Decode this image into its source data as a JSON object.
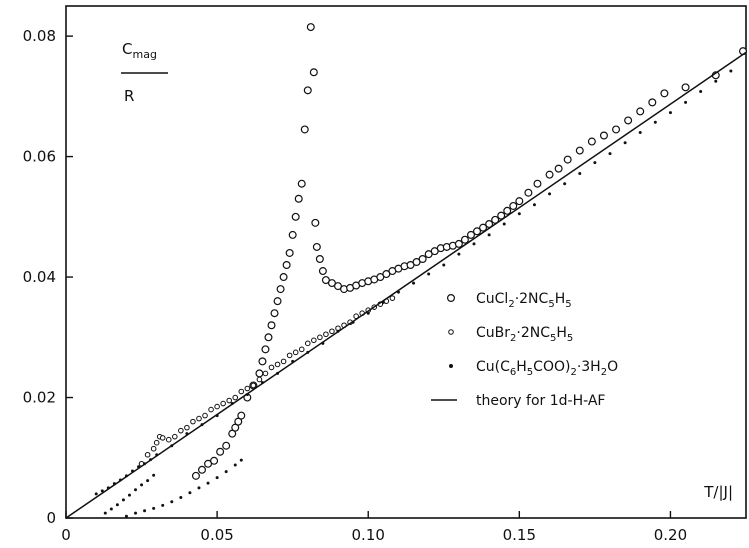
{
  "chart_data": {
    "type": "scatter",
    "title": "",
    "ylabel_top": "C",
    "ylabel_top_sub": "mag",
    "ylabel_bottom": "R",
    "xlabel": "T/|J|",
    "xlim": [
      0,
      0.225
    ],
    "ylim": [
      0,
      0.085
    ],
    "x_ticks": [
      0,
      0.05,
      0.1,
      0.15,
      0.2
    ],
    "x_tick_labels": [
      "0",
      "0.05",
      "0.10",
      "0.15",
      "0.20"
    ],
    "y_ticks": [
      0,
      0.02,
      0.04,
      0.06,
      0.08
    ],
    "y_tick_labels": [
      "0",
      "0.02",
      "0.04",
      "0.06",
      "0.08"
    ],
    "grid": false,
    "legend_position": "center-right",
    "legend": [
      {
        "key": "cucl2",
        "marker": "large-open-circle",
        "parts": [
          [
            "CuCl",
            ""
          ],
          [
            "2",
            "sub"
          ],
          [
            "·2NC",
            ""
          ],
          [
            "5",
            "sub"
          ],
          [
            "H",
            ""
          ],
          [
            "5",
            "sub"
          ]
        ]
      },
      {
        "key": "cubr2",
        "marker": "small-open-circle",
        "parts": [
          [
            "CuBr",
            ""
          ],
          [
            "2",
            "sub"
          ],
          [
            "·2NC",
            ""
          ],
          [
            "5",
            "sub"
          ],
          [
            "H",
            ""
          ],
          [
            "5",
            "sub"
          ]
        ]
      },
      {
        "key": "cubenz",
        "marker": "dot",
        "parts": [
          [
            "Cu(C",
            ""
          ],
          [
            "6",
            "sub"
          ],
          [
            "H",
            ""
          ],
          [
            "5",
            "sub"
          ],
          [
            "COO)",
            ""
          ],
          [
            "2",
            "sub"
          ],
          [
            "·3H",
            ""
          ],
          [
            "2",
            "sub"
          ],
          [
            "O",
            ""
          ]
        ]
      },
      {
        "key": "theory",
        "marker": "line",
        "parts": [
          [
            "theory for 1d-H-AF",
            ""
          ]
        ]
      }
    ],
    "series": [
      {
        "key": "cucl2",
        "marker": "large-open-circle",
        "points": [
          [
            0.043,
            0.007
          ],
          [
            0.045,
            0.008
          ],
          [
            0.047,
            0.009
          ],
          [
            0.049,
            0.0095
          ],
          [
            0.051,
            0.011
          ],
          [
            0.053,
            0.012
          ],
          [
            0.055,
            0.014
          ],
          [
            0.056,
            0.015
          ],
          [
            0.057,
            0.016
          ],
          [
            0.058,
            0.017
          ],
          [
            0.06,
            0.02
          ],
          [
            0.062,
            0.022
          ],
          [
            0.064,
            0.024
          ],
          [
            0.065,
            0.026
          ],
          [
            0.066,
            0.028
          ],
          [
            0.067,
            0.03
          ],
          [
            0.068,
            0.032
          ],
          [
            0.069,
            0.034
          ],
          [
            0.07,
            0.036
          ],
          [
            0.071,
            0.038
          ],
          [
            0.072,
            0.04
          ],
          [
            0.073,
            0.042
          ],
          [
            0.074,
            0.044
          ],
          [
            0.075,
            0.047
          ],
          [
            0.076,
            0.05
          ],
          [
            0.077,
            0.053
          ],
          [
            0.078,
            0.0555
          ],
          [
            0.079,
            0.0645
          ],
          [
            0.08,
            0.071
          ],
          [
            0.081,
            0.0815
          ],
          [
            0.082,
            0.074
          ],
          [
            0.0825,
            0.049
          ],
          [
            0.083,
            0.045
          ],
          [
            0.084,
            0.043
          ],
          [
            0.085,
            0.041
          ],
          [
            0.086,
            0.0395
          ],
          [
            0.088,
            0.039
          ],
          [
            0.09,
            0.0385
          ],
          [
            0.092,
            0.038
          ],
          [
            0.094,
            0.0382
          ],
          [
            0.096,
            0.0386
          ],
          [
            0.098,
            0.039
          ],
          [
            0.1,
            0.0393
          ],
          [
            0.102,
            0.0396
          ],
          [
            0.104,
            0.04
          ],
          [
            0.106,
            0.0405
          ],
          [
            0.108,
            0.041
          ],
          [
            0.11,
            0.0414
          ],
          [
            0.112,
            0.0418
          ],
          [
            0.114,
            0.042
          ],
          [
            0.116,
            0.0425
          ],
          [
            0.118,
            0.043
          ],
          [
            0.12,
            0.0438
          ],
          [
            0.122,
            0.0443
          ],
          [
            0.124,
            0.0448
          ],
          [
            0.126,
            0.045
          ],
          [
            0.128,
            0.0452
          ],
          [
            0.13,
            0.0455
          ],
          [
            0.132,
            0.0462
          ],
          [
            0.134,
            0.047
          ],
          [
            0.136,
            0.0476
          ],
          [
            0.138,
            0.0482
          ],
          [
            0.14,
            0.0488
          ],
          [
            0.142,
            0.0495
          ],
          [
            0.144,
            0.0502
          ],
          [
            0.146,
            0.051
          ],
          [
            0.148,
            0.0518
          ],
          [
            0.15,
            0.0526
          ],
          [
            0.153,
            0.054
          ],
          [
            0.156,
            0.0555
          ],
          [
            0.16,
            0.057
          ],
          [
            0.163,
            0.058
          ],
          [
            0.166,
            0.0595
          ],
          [
            0.17,
            0.061
          ],
          [
            0.174,
            0.0625
          ],
          [
            0.178,
            0.0635
          ],
          [
            0.182,
            0.0645
          ],
          [
            0.186,
            0.066
          ],
          [
            0.19,
            0.0675
          ],
          [
            0.194,
            0.069
          ],
          [
            0.198,
            0.0705
          ],
          [
            0.205,
            0.0715
          ],
          [
            0.215,
            0.0735
          ],
          [
            0.224,
            0.0775
          ]
        ]
      },
      {
        "key": "cubr2",
        "marker": "small-open-circle",
        "points": [
          [
            0.025,
            0.009
          ],
          [
            0.027,
            0.0105
          ],
          [
            0.029,
            0.0115
          ],
          [
            0.03,
            0.0125
          ],
          [
            0.031,
            0.0135
          ],
          [
            0.032,
            0.0133
          ],
          [
            0.034,
            0.013
          ],
          [
            0.036,
            0.0135
          ],
          [
            0.038,
            0.0145
          ],
          [
            0.04,
            0.015
          ],
          [
            0.042,
            0.016
          ],
          [
            0.044,
            0.0165
          ],
          [
            0.046,
            0.017
          ],
          [
            0.048,
            0.018
          ],
          [
            0.05,
            0.0185
          ],
          [
            0.052,
            0.019
          ],
          [
            0.054,
            0.0195
          ],
          [
            0.056,
            0.02
          ],
          [
            0.058,
            0.021
          ],
          [
            0.06,
            0.0215
          ],
          [
            0.062,
            0.022
          ],
          [
            0.064,
            0.023
          ],
          [
            0.066,
            0.024
          ],
          [
            0.068,
            0.025
          ],
          [
            0.07,
            0.0255
          ],
          [
            0.072,
            0.026
          ],
          [
            0.074,
            0.027
          ],
          [
            0.076,
            0.0275
          ],
          [
            0.078,
            0.028
          ],
          [
            0.08,
            0.029
          ],
          [
            0.082,
            0.0295
          ],
          [
            0.084,
            0.03
          ],
          [
            0.086,
            0.0305
          ],
          [
            0.088,
            0.031
          ],
          [
            0.09,
            0.0315
          ],
          [
            0.092,
            0.032
          ],
          [
            0.094,
            0.0325
          ],
          [
            0.096,
            0.0335
          ],
          [
            0.098,
            0.034
          ],
          [
            0.1,
            0.0345
          ],
          [
            0.102,
            0.035
          ],
          [
            0.104,
            0.0355
          ],
          [
            0.106,
            0.036
          ],
          [
            0.108,
            0.0365
          ]
        ]
      },
      {
        "key": "cubenz",
        "marker": "dot",
        "points": [
          [
            0.01,
            0.004
          ],
          [
            0.012,
            0.0045
          ],
          [
            0.014,
            0.005
          ],
          [
            0.016,
            0.0057
          ],
          [
            0.018,
            0.0063
          ],
          [
            0.02,
            0.007
          ],
          [
            0.022,
            0.0078
          ],
          [
            0.024,
            0.0085
          ],
          [
            0.026,
            0.009
          ],
          [
            0.028,
            0.0097
          ],
          [
            0.03,
            0.0105
          ],
          [
            0.035,
            0.012
          ],
          [
            0.04,
            0.014
          ],
          [
            0.045,
            0.0155
          ],
          [
            0.05,
            0.017
          ],
          [
            0.055,
            0.019
          ],
          [
            0.06,
            0.0205
          ],
          [
            0.065,
            0.0225
          ],
          [
            0.07,
            0.024
          ],
          [
            0.075,
            0.026
          ],
          [
            0.08,
            0.0275
          ],
          [
            0.085,
            0.029
          ],
          [
            0.09,
            0.031
          ],
          [
            0.095,
            0.0325
          ],
          [
            0.1,
            0.034
          ],
          [
            0.105,
            0.0358
          ],
          [
            0.11,
            0.0375
          ],
          [
            0.115,
            0.039
          ],
          [
            0.12,
            0.0405
          ],
          [
            0.125,
            0.042
          ],
          [
            0.13,
            0.0438
          ],
          [
            0.135,
            0.0455
          ],
          [
            0.14,
            0.047
          ],
          [
            0.145,
            0.0488
          ],
          [
            0.15,
            0.0505
          ],
          [
            0.155,
            0.052
          ],
          [
            0.16,
            0.0538
          ],
          [
            0.165,
            0.0555
          ],
          [
            0.17,
            0.0572
          ],
          [
            0.175,
            0.059
          ],
          [
            0.18,
            0.0605
          ],
          [
            0.185,
            0.0623
          ],
          [
            0.19,
            0.064
          ],
          [
            0.195,
            0.0657
          ],
          [
            0.2,
            0.0673
          ],
          [
            0.205,
            0.069
          ],
          [
            0.21,
            0.0708
          ],
          [
            0.215,
            0.0725
          ],
          [
            0.22,
            0.0742
          ],
          [
            0.013,
            0.0008
          ],
          [
            0.015,
            0.0015
          ],
          [
            0.017,
            0.0022
          ],
          [
            0.019,
            0.003
          ],
          [
            0.021,
            0.0038
          ],
          [
            0.023,
            0.0047
          ],
          [
            0.025,
            0.0055
          ],
          [
            0.027,
            0.0062
          ],
          [
            0.029,
            0.0071
          ],
          [
            0.02,
            0.0003
          ],
          [
            0.023,
            0.0008
          ],
          [
            0.026,
            0.0012
          ],
          [
            0.029,
            0.0016
          ],
          [
            0.032,
            0.0021
          ],
          [
            0.035,
            0.0027
          ],
          [
            0.038,
            0.0034
          ],
          [
            0.041,
            0.0042
          ],
          [
            0.044,
            0.005
          ],
          [
            0.047,
            0.0058
          ],
          [
            0.05,
            0.0067
          ],
          [
            0.053,
            0.0077
          ],
          [
            0.056,
            0.0088
          ],
          [
            0.058,
            0.0096
          ]
        ]
      },
      {
        "key": "theory",
        "marker": "line",
        "points": [
          [
            0.0,
            0.0
          ],
          [
            0.225,
            0.0773
          ]
        ]
      }
    ]
  }
}
